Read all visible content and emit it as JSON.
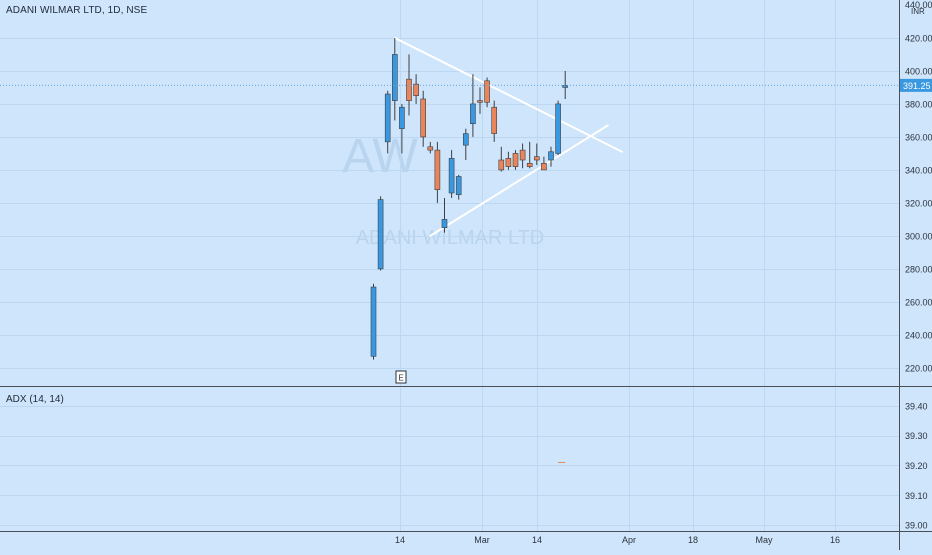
{
  "header": {
    "symbol": "ADANI WILMAR LTD, 1D, NSE"
  },
  "watermark": {
    "ticker": "AW",
    "name": "ADANI WILMAR LTD"
  },
  "price_pane": {
    "currency": "INR",
    "last_price": "391.25",
    "y_ticks": [
      "220.00",
      "240.00",
      "260.00",
      "280.00",
      "300.00",
      "320.00",
      "340.00",
      "360.00",
      "380.00",
      "400.00",
      "420.00"
    ],
    "top_partial_tick": "440.00",
    "earnings_marker": "E"
  },
  "indicator_pane": {
    "label": "ADX (14, 14)",
    "y_ticks": [
      "39.00",
      "39.10",
      "39.20",
      "39.30",
      "39.40"
    ]
  },
  "x_axis": {
    "ticks": [
      "14",
      "Mar",
      "14",
      "Apr",
      "18",
      "May",
      "16"
    ]
  },
  "colors": {
    "up": "#3a98e0",
    "down": "#e8855a",
    "wick": "#3b3f44",
    "trend": "#ffffff",
    "background": "#cfe5fb"
  },
  "chart_data": [
    {
      "type": "candlestick",
      "title": "ADANI WILMAR LTD, 1D, NSE",
      "ylabel": "INR",
      "ylim": [
        209,
        443
      ],
      "candles": [
        {
          "o": 227,
          "h": 271,
          "l": 225,
          "c": 269
        },
        {
          "o": 280,
          "h": 324,
          "l": 279,
          "c": 322
        },
        {
          "o": 357,
          "h": 388,
          "l": 350,
          "c": 386
        },
        {
          "o": 382,
          "h": 420,
          "l": 370,
          "c": 410
        },
        {
          "o": 365,
          "h": 380,
          "l": 350,
          "c": 378
        },
        {
          "o": 395,
          "h": 410,
          "l": 373,
          "c": 382
        },
        {
          "o": 392,
          "h": 398,
          "l": 380,
          "c": 385
        },
        {
          "o": 383,
          "h": 388,
          "l": 354,
          "c": 360
        },
        {
          "o": 354,
          "h": 357,
          "l": 350,
          "c": 352
        },
        {
          "o": 352,
          "h": 357,
          "l": 320,
          "c": 328
        },
        {
          "o": 305,
          "h": 323,
          "l": 302,
          "c": 310
        },
        {
          "o": 326,
          "h": 352,
          "l": 323,
          "c": 347
        },
        {
          "o": 325,
          "h": 337,
          "l": 322,
          "c": 336
        },
        {
          "o": 355,
          "h": 365,
          "l": 346,
          "c": 362
        },
        {
          "o": 368,
          "h": 398,
          "l": 360,
          "c": 380
        },
        {
          "o": 382,
          "h": 390,
          "l": 374,
          "c": 381
        },
        {
          "o": 394,
          "h": 396,
          "l": 378,
          "c": 381
        },
        {
          "o": 378,
          "h": 382,
          "l": 357,
          "c": 362
        },
        {
          "o": 346,
          "h": 354,
          "l": 339,
          "c": 340
        },
        {
          "o": 347,
          "h": 351,
          "l": 340,
          "c": 342
        },
        {
          "o": 350,
          "h": 352,
          "l": 340,
          "c": 342
        },
        {
          "o": 352,
          "h": 356,
          "l": 341,
          "c": 346
        },
        {
          "o": 344,
          "h": 357,
          "l": 341,
          "c": 342
        },
        {
          "o": 348,
          "h": 356,
          "l": 343,
          "c": 346
        },
        {
          "o": 344,
          "h": 348,
          "l": 340,
          "c": 340
        },
        {
          "o": 346,
          "h": 354,
          "l": 342,
          "c": 351
        },
        {
          "o": 350,
          "h": 382,
          "l": 349,
          "c": 380
        },
        {
          "o": 390,
          "h": 400,
          "l": 383,
          "c": 391.25
        }
      ],
      "trendlines": [
        {
          "from_bar": 3,
          "from_price": 420,
          "to_bar": 35,
          "to_price": 351
        },
        {
          "from_bar": 8,
          "from_price": 300,
          "to_bar": 33,
          "to_price": 367
        }
      ]
    },
    {
      "type": "line",
      "title": "ADX (14, 14)",
      "ylim": [
        38.98,
        39.46
      ],
      "x_bar": [
        26,
        27
      ],
      "values": [
        39.21,
        39.21
      ]
    }
  ]
}
